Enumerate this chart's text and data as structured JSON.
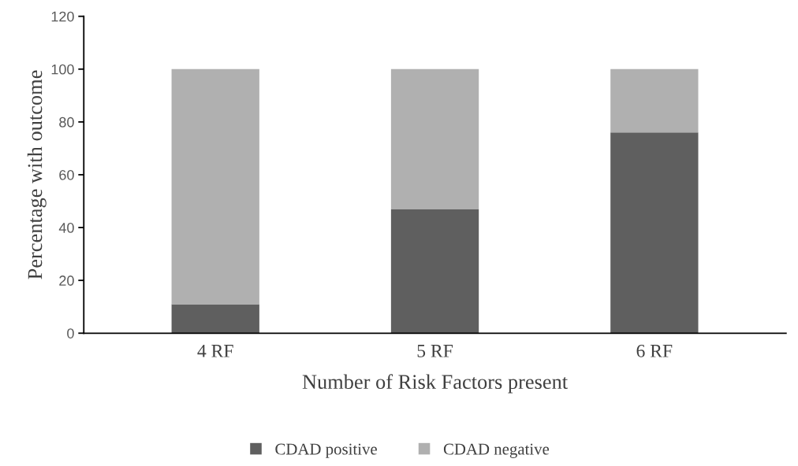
{
  "chart_data": {
    "type": "bar",
    "stacked": true,
    "xlabel": "Number of Risk Factors present",
    "ylabel": "Percentage with outcome",
    "categories": [
      "4 RF",
      "5 RF",
      "6 RF"
    ],
    "series": [
      {
        "name": "CDAD positive",
        "color": "#5f5f5f",
        "values": [
          11,
          47,
          76
        ]
      },
      {
        "name": "CDAD negative",
        "color": "#b0b0b0",
        "values": [
          89,
          53,
          24
        ]
      }
    ],
    "ylim": [
      0,
      120
    ],
    "yticks": [
      0,
      20,
      40,
      60,
      80,
      100,
      120
    ],
    "grid": false,
    "legend": "bottom"
  }
}
